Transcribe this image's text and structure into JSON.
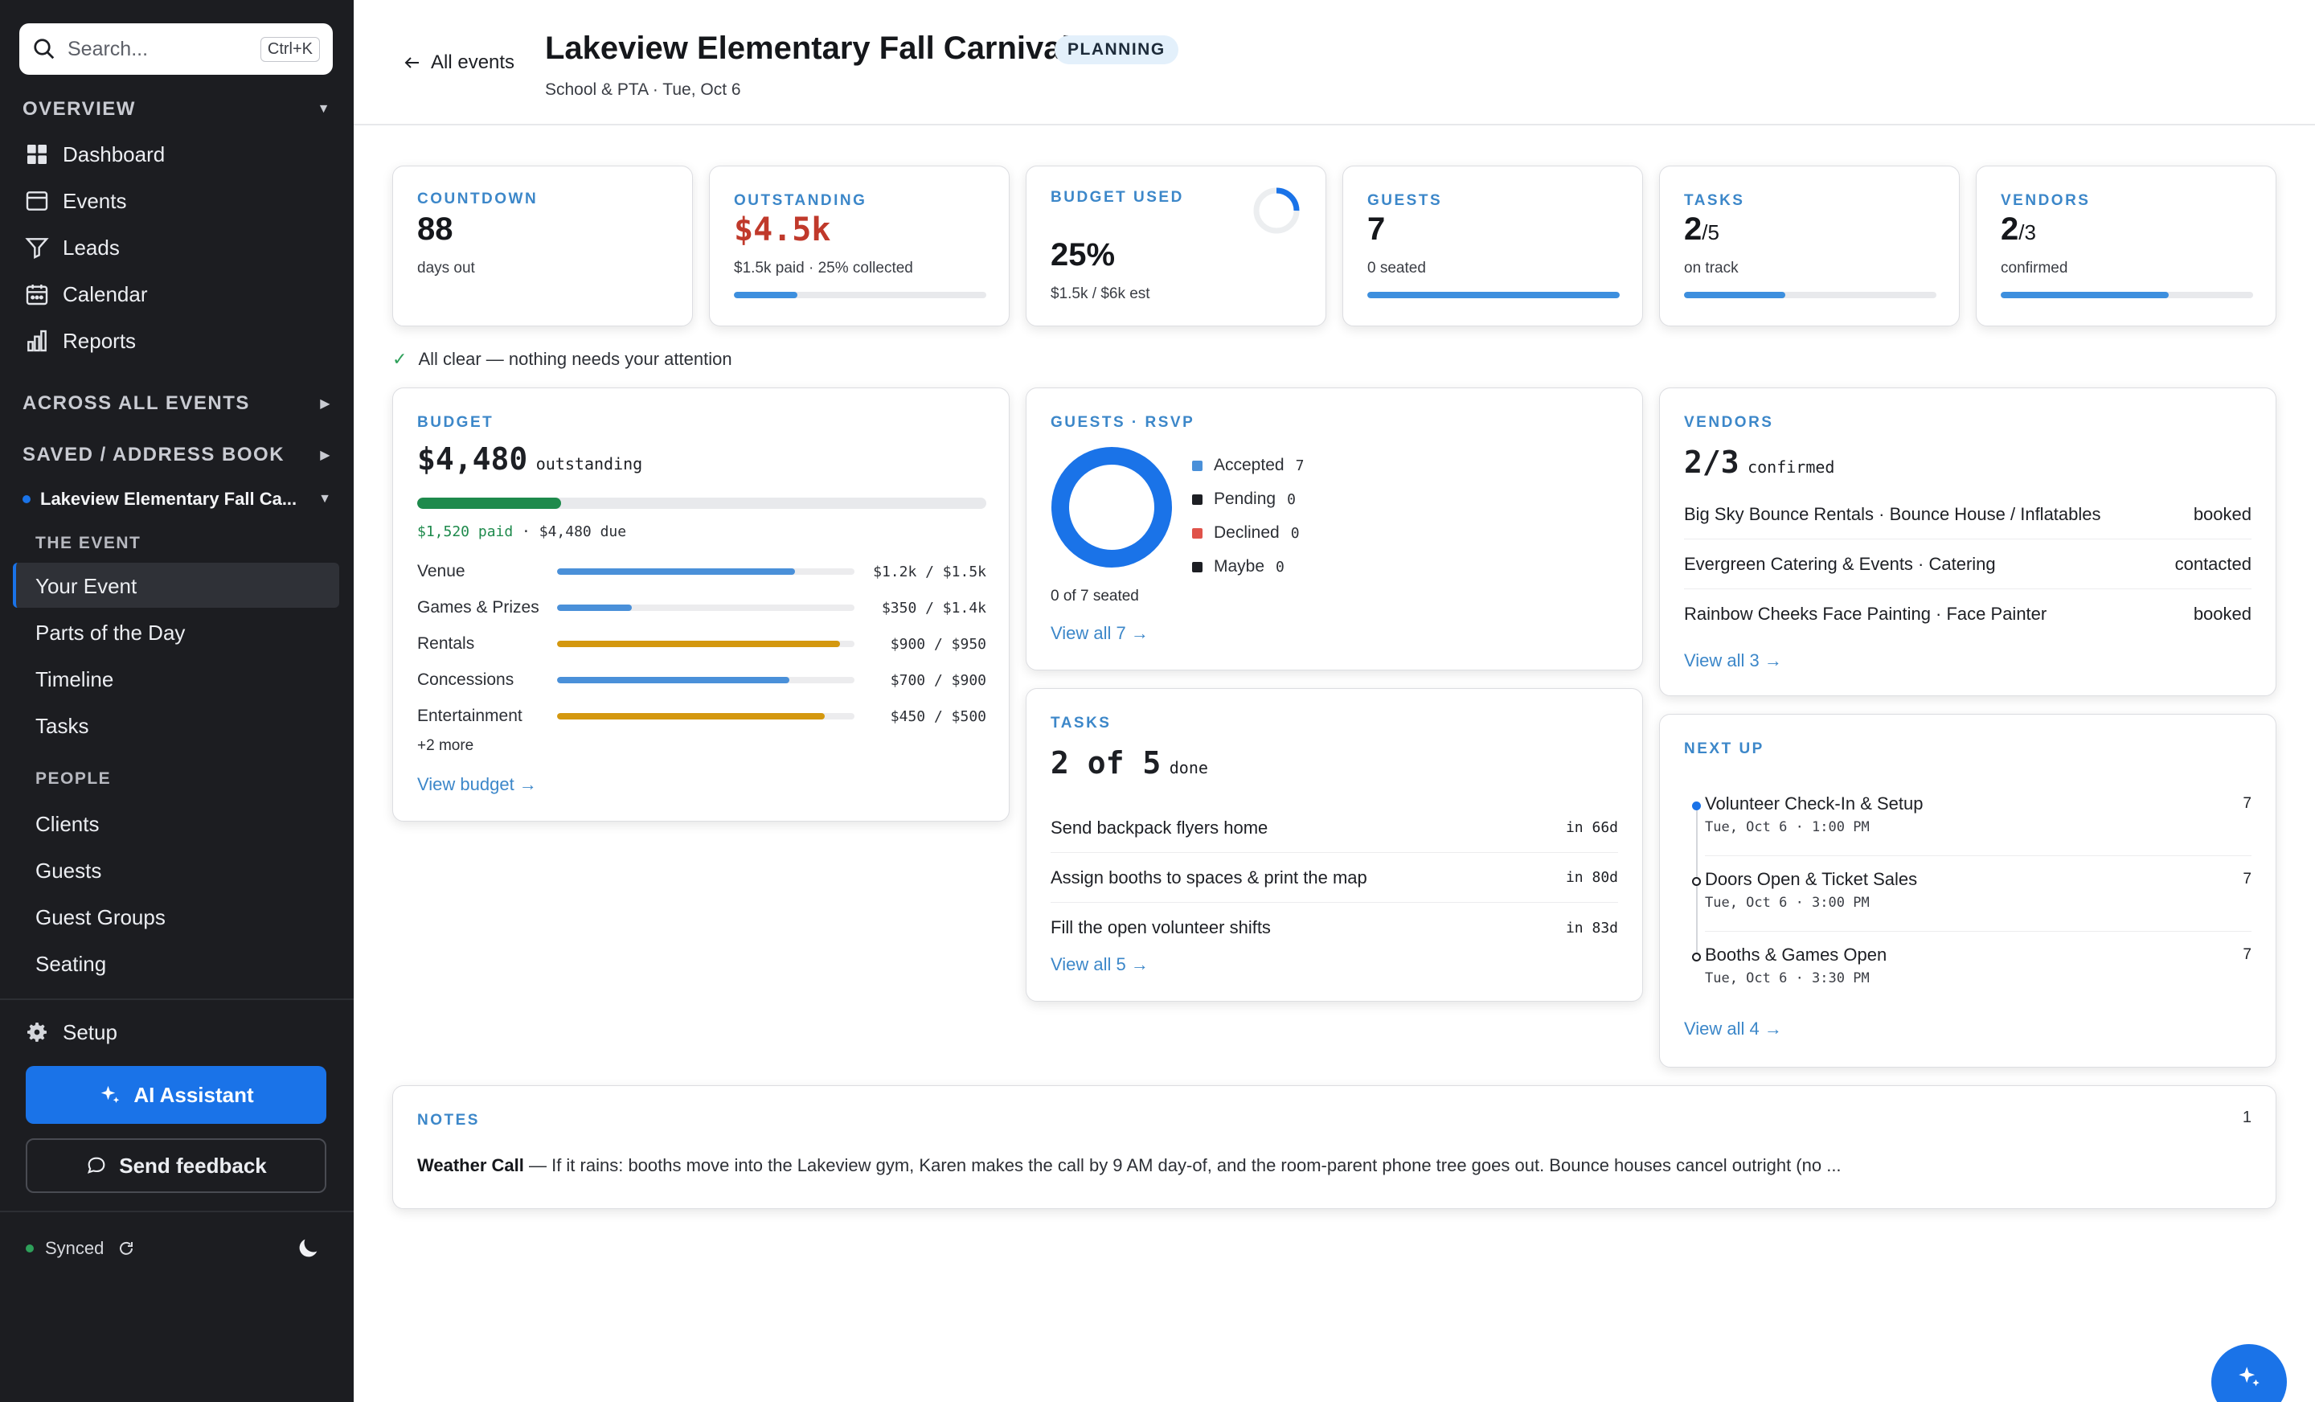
{
  "sidebar": {
    "search_placeholder": "Search...",
    "search_shortcut": "Ctrl+K",
    "overview_label": "OVERVIEW",
    "nav": [
      {
        "label": "Dashboard",
        "icon": "dashboard-icon"
      },
      {
        "label": "Events",
        "icon": "calendar-box-icon"
      },
      {
        "label": "Leads",
        "icon": "funnel-icon"
      },
      {
        "label": "Calendar",
        "icon": "calendar-icon"
      },
      {
        "label": "Reports",
        "icon": "bar-chart-icon"
      }
    ],
    "across_label": "ACROSS ALL EVENTS",
    "saved_label": "SAVED / ADDRESS BOOK",
    "current_event": "Lakeview Elementary Fall Ca...",
    "the_event_label": "THE EVENT",
    "event_items": [
      "Your Event",
      "Parts of the Day",
      "Timeline",
      "Tasks"
    ],
    "people_label": "PEOPLE",
    "people_items": [
      "Clients",
      "Guests",
      "Guest Groups",
      "Seating"
    ],
    "setup_label": "Setup",
    "ai_label": "AI Assistant",
    "feedback_label": "Send feedback",
    "synced_label": "Synced"
  },
  "header": {
    "back_label": "All events",
    "title": "Lakeview Elementary Fall Carnival",
    "badge": "PLANNING",
    "subtitle": "School & PTA · Tue, Oct 6"
  },
  "stats": {
    "countdown": {
      "label": "COUNTDOWN",
      "value": "88",
      "sub": "days out"
    },
    "outstanding": {
      "label": "OUTSTANDING",
      "value": "$4.5k",
      "sub": "$1.5k paid · 25% collected",
      "progress": 0.25,
      "color": "#c0392b"
    },
    "budget_used": {
      "label": "BUDGET USED",
      "value": "25%",
      "sub": "$1.5k / $6k est",
      "ring": 0.25
    },
    "guests": {
      "label": "GUESTS",
      "value": "7",
      "sub": "0 seated",
      "progress": 1.0
    },
    "tasks": {
      "label": "TASKS",
      "value": "2",
      "denom": "/5",
      "sub": "on track",
      "progress": 0.4
    },
    "vendors": {
      "label": "VENDORS",
      "value": "2",
      "denom": "/3",
      "sub": "confirmed",
      "progress": 0.667
    }
  },
  "all_clear": "All clear — nothing needs your attention",
  "budget": {
    "label": "BUDGET",
    "amount": "$4,480",
    "amount_suffix": "outstanding",
    "paid_text": "$1,520 paid",
    "due_text": " · $4,480 due",
    "paid_fraction": 0.253,
    "rows": [
      {
        "name": "Venue",
        "value": "$1.2k / $1.5k",
        "fraction": 0.8,
        "color": "#4a90d9"
      },
      {
        "name": "Games & Prizes",
        "value": "$350 / $1.4k",
        "fraction": 0.25,
        "color": "#4a90d9"
      },
      {
        "name": "Rentals",
        "value": "$900 / $950",
        "fraction": 0.95,
        "color": "#d4980f"
      },
      {
        "name": "Concessions",
        "value": "$700 / $900",
        "fraction": 0.78,
        "color": "#4a90d9"
      },
      {
        "name": "Entertainment",
        "value": "$450 / $500",
        "fraction": 0.9,
        "color": "#d4980f"
      }
    ],
    "more": "+2 more",
    "link": "View budget →"
  },
  "guests_rsvp": {
    "label": "GUESTS · RSVP",
    "legend": [
      {
        "name": "Accepted",
        "count": "7",
        "color": "#4a90d9"
      },
      {
        "name": "Pending",
        "count": "0",
        "color": "#1d1f24"
      },
      {
        "name": "Declined",
        "count": "0",
        "color": "#e0534a"
      },
      {
        "name": "Maybe",
        "count": "0",
        "color": "#1d1f24"
      }
    ],
    "seated": "0 of 7 seated",
    "link": "View all 7 →"
  },
  "tasks_card": {
    "label": "TASKS",
    "headline": "2 of 5",
    "headline_suffix": "done",
    "items": [
      {
        "name": "Send backpack flyers home",
        "due": "in 66d"
      },
      {
        "name": "Assign booths to spaces & print the map",
        "due": "in 80d"
      },
      {
        "name": "Fill the open volunteer shifts",
        "due": "in 83d"
      }
    ],
    "link": "View all 5 →"
  },
  "vendors_card": {
    "label": "VENDORS",
    "headline": "2/3",
    "headline_suffix": "confirmed",
    "items": [
      {
        "name": "Big Sky Bounce Rentals · Bounce House / Inflatables",
        "status": "booked"
      },
      {
        "name": "Evergreen Catering & Events · Catering",
        "status": "contacted"
      },
      {
        "name": "Rainbow Cheeks Face Painting · Face Painter",
        "status": "booked"
      }
    ],
    "link": "View all 3 →"
  },
  "next_up": {
    "label": "NEXT UP",
    "items": [
      {
        "title": "Volunteer Check-In & Setup",
        "time": "Tue, Oct 6 · 1:00 PM",
        "count": "7"
      },
      {
        "title": "Doors Open & Ticket Sales",
        "time": "Tue, Oct 6 · 3:00 PM",
        "count": "7"
      },
      {
        "title": "Booths & Games Open",
        "time": "Tue, Oct 6 · 3:30 PM",
        "count": "7"
      }
    ],
    "link": "View all 4 →"
  },
  "notes": {
    "label": "NOTES",
    "count": "1",
    "note_title": "Weather Call",
    "note_text": " — If it rains: booths move into the Lakeview gym, Karen makes the call by 9 AM day-of, and the room-parent phone tree goes out. Bounce houses cancel outright (no ..."
  },
  "colors": {
    "accent": "#1a73e8",
    "bar_blue": "#3d8fde",
    "paid_green": "#1e8a4c"
  }
}
